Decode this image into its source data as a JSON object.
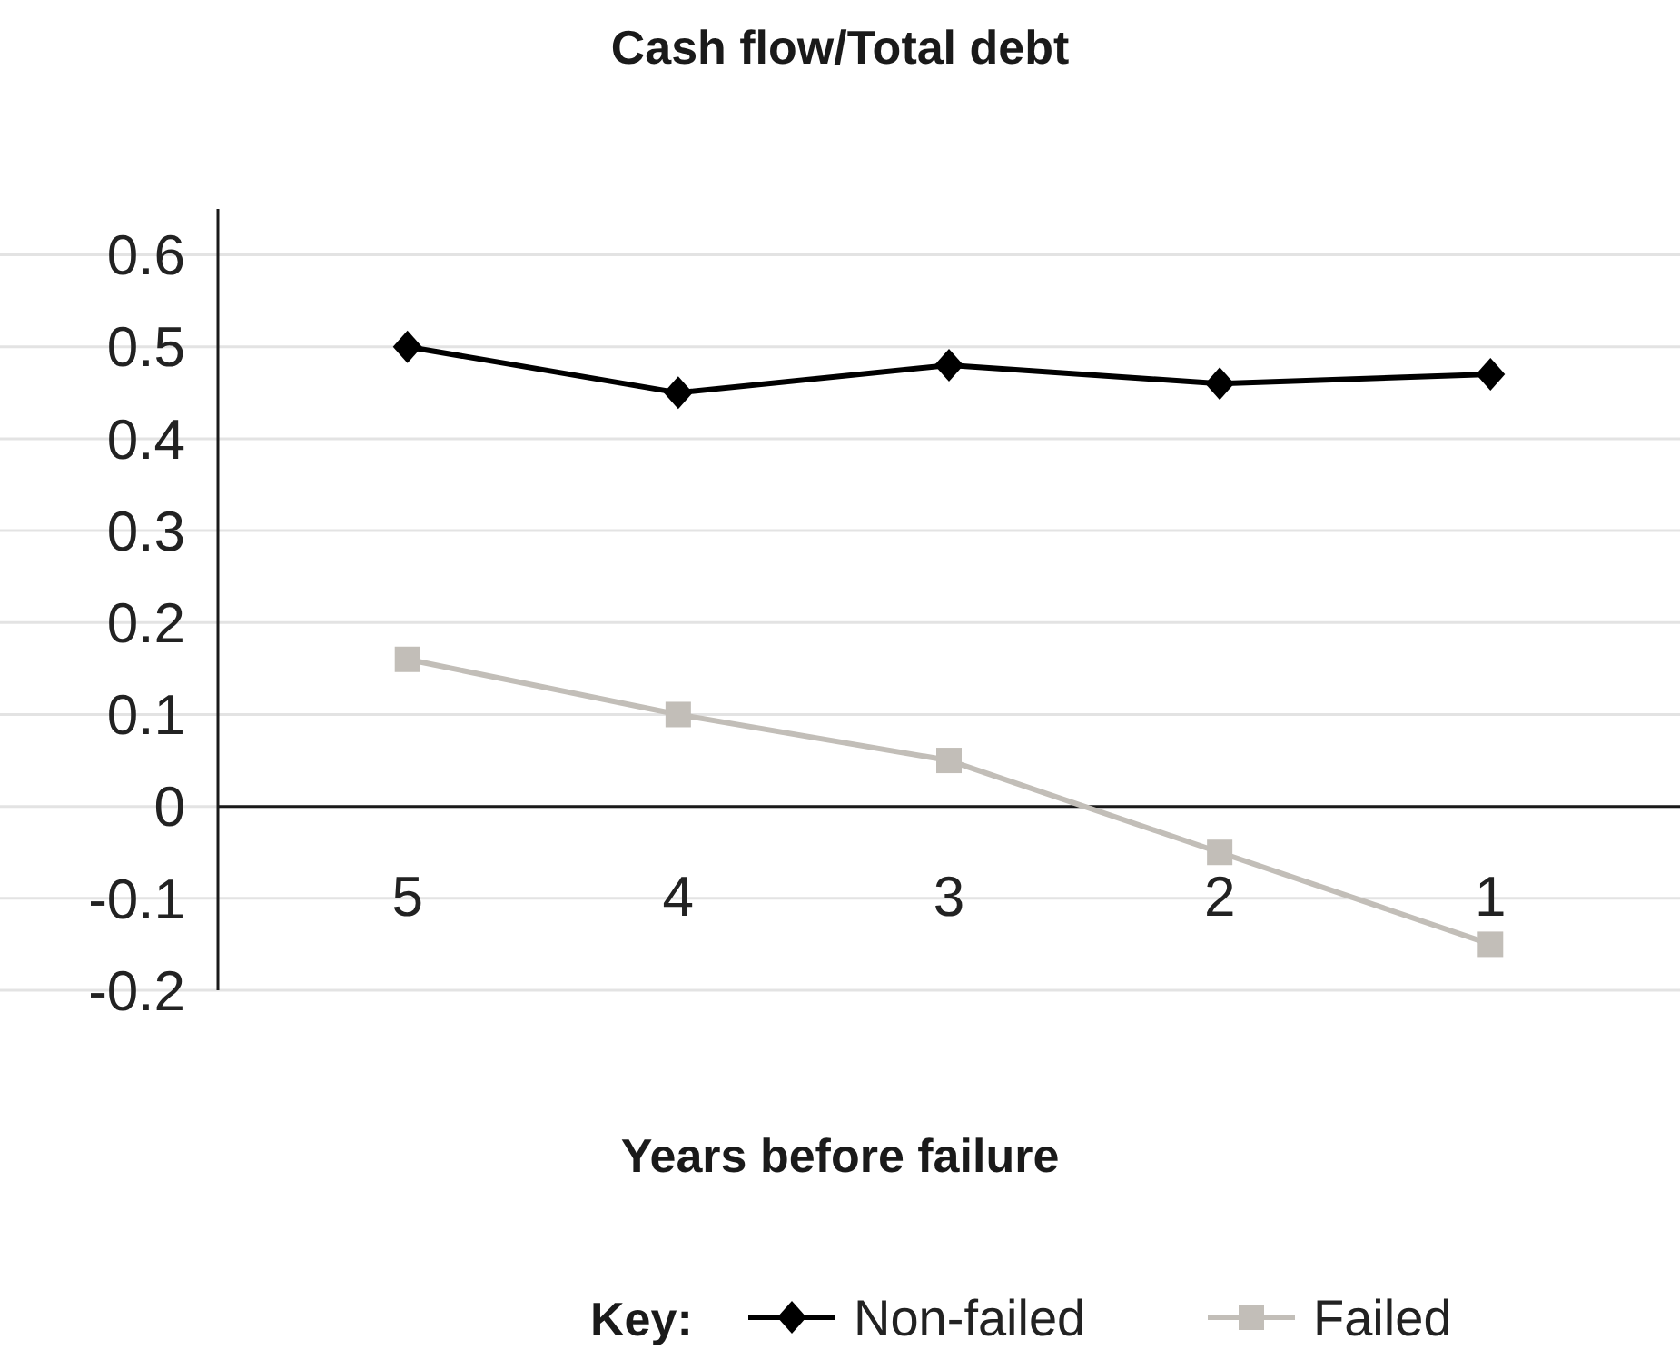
{
  "chart_data": {
    "type": "line",
    "title": "Cash flow/Total debt",
    "xlabel": "Years before failure",
    "legend_title": "Key:",
    "categories": [
      "5",
      "4",
      "3",
      "2",
      "1"
    ],
    "series": [
      {
        "name": "Non-failed",
        "color": "#000000",
        "marker": "diamond",
        "values": [
          0.5,
          0.45,
          0.48,
          0.46,
          0.47
        ]
      },
      {
        "name": "Failed",
        "color": "#c2beb8",
        "marker": "square",
        "values": [
          0.16,
          0.1,
          0.05,
          -0.05,
          -0.15
        ]
      }
    ],
    "ylim": [
      -0.2,
      0.65
    ],
    "yticks": [
      -0.2,
      -0.1,
      0,
      0.1,
      0.2,
      0.3,
      0.4,
      0.5,
      0.6
    ],
    "grid": "y",
    "legend": "bottom"
  }
}
